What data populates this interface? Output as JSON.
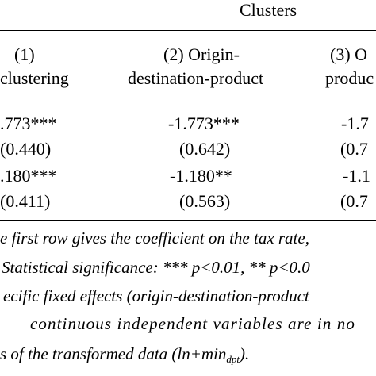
{
  "header": {
    "group_label": "Clusters",
    "col1": {
      "line1": "(1)",
      "line2": "clustering"
    },
    "col2": {
      "line1": "(2) Origin-",
      "line2": "destination-product"
    },
    "col3": {
      "line1": "(3) O",
      "line2": "produc"
    }
  },
  "rows": [
    {
      "coef": [
        ".773***",
        "-1.773***",
        "-1.7"
      ],
      "se": [
        "(0.440)",
        "(0.642)",
        "(0.7"
      ]
    },
    {
      "coef": [
        ".180***",
        "-1.180**",
        "-1.1"
      ],
      "se": [
        "(0.411)",
        "(0.563)",
        "(0.7"
      ]
    }
  ],
  "notes": {
    "line1": "e first row gives the coefficient on the tax rate,",
    "line2": "Statistical significance: *** p<0.01, ** p<0.0",
    "line3": "ecific fixed effects (origin-destination-product",
    "line4": "continuous independent variables are in no",
    "line5_prefix": "s of the transformed data (ln+min",
    "line5_sub": "dpt",
    "line5_suffix": ")."
  }
}
